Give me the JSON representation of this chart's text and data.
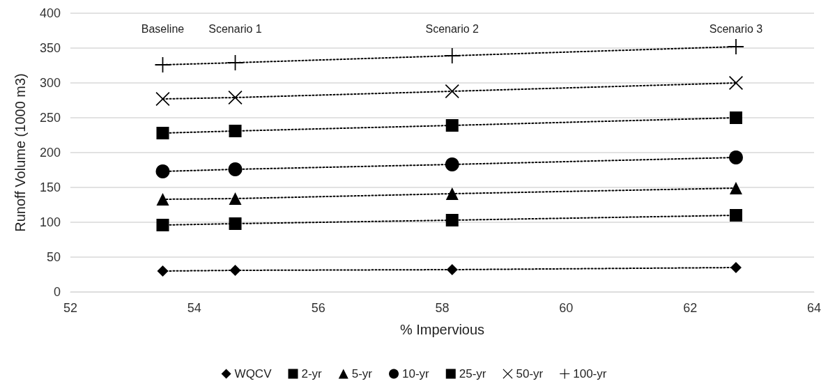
{
  "chart_data": {
    "type": "line",
    "xlabel": "% Impervious",
    "ylabel": "Runoff Volume (1000 m3)",
    "xlim": [
      52,
      64
    ],
    "xticks": [
      52,
      54,
      56,
      58,
      60,
      62,
      64
    ],
    "ylim": [
      0,
      400
    ],
    "yticks": [
      0,
      50,
      100,
      150,
      200,
      250,
      300,
      350,
      400
    ],
    "grid": "y",
    "legend": "bottom",
    "line_style": "dotted",
    "x": [
      53.49,
      54.66,
      58.16,
      62.74
    ],
    "series": [
      {
        "name": "WQCV",
        "color": "#000000",
        "marker": "diamond",
        "values": [
          30,
          31,
          32,
          35
        ]
      },
      {
        "name": "2-yr",
        "color": "#000000",
        "marker": "square",
        "values": [
          96,
          98,
          103,
          110
        ]
      },
      {
        "name": "5-yr",
        "color": "#000000",
        "marker": "triangle",
        "values": [
          133,
          134,
          141,
          149
        ]
      },
      {
        "name": "10-yr",
        "color": "#000000",
        "marker": "circle",
        "values": [
          173,
          176,
          183,
          193
        ]
      },
      {
        "name": "25-yr",
        "color": "#000000",
        "marker": "square",
        "values": [
          228,
          231,
          239,
          250
        ]
      },
      {
        "name": "50-yr",
        "color": "#000000",
        "marker": "cross",
        "values": [
          277,
          279,
          288,
          300
        ]
      },
      {
        "name": "100-yr",
        "color": "#000000",
        "marker": "plus",
        "values": [
          326,
          329,
          339,
          352
        ]
      }
    ],
    "annotations": [
      "Baseline",
      "Scenario 1",
      "Scenario 2",
      "Scenario 3"
    ]
  }
}
